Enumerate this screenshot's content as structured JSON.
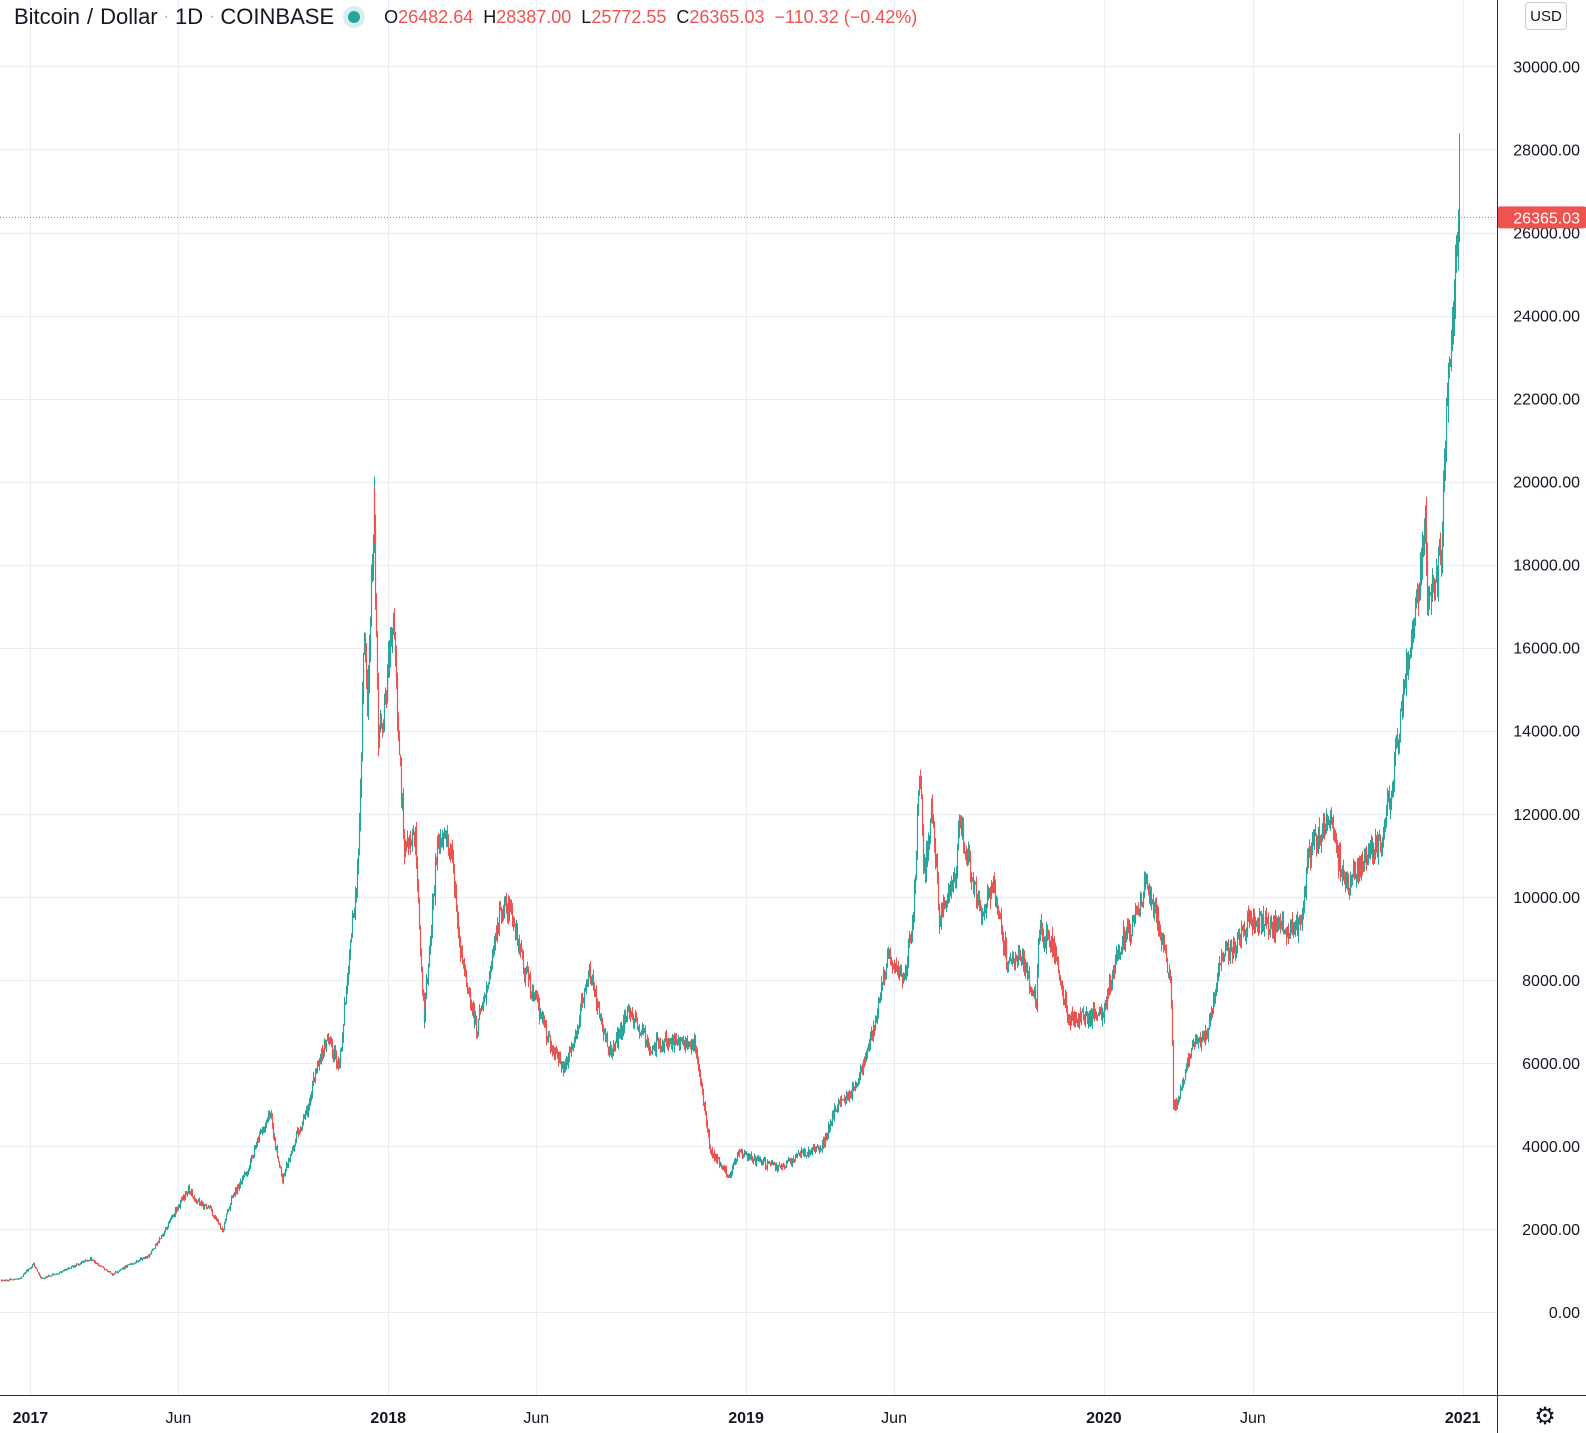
{
  "header": {
    "symbol": "Bitcoin",
    "sep1": "/",
    "quote": "Dollar",
    "sep2": "·",
    "interval": "1D",
    "sep3": "·",
    "exchange": "COINBASE",
    "o_label": "O",
    "o_value": "26482.64",
    "h_label": "H",
    "h_value": "28387.00",
    "l_label": "L",
    "l_value": "25772.55",
    "c_label": "C",
    "c_value": "26365.03",
    "change": "−110.32 (−0.42%)"
  },
  "currency_button": "USD",
  "settings_icon": "gear-icon",
  "colors": {
    "up": "#26a69a",
    "down": "#ef5350",
    "grid": "#e8eef3",
    "last_price": "#ef5350"
  },
  "chart_data": {
    "type": "candlestick",
    "x_ticks": [
      {
        "label": "2017",
        "date": "2017-01-01"
      },
      {
        "label": "Jun",
        "date": "2017-06-01"
      },
      {
        "label": "2018",
        "date": "2018-01-01"
      },
      {
        "label": "Jun",
        "date": "2018-06-01"
      },
      {
        "label": "2019",
        "date": "2019-01-01"
      },
      {
        "label": "Jun",
        "date": "2019-06-01"
      },
      {
        "label": "2020",
        "date": "2020-01-01"
      },
      {
        "label": "Jun",
        "date": "2020-06-01"
      },
      {
        "label": "2021",
        "date": "2021-01-01"
      }
    ],
    "y_ticks": [
      "30000.00",
      "28000.00",
      "26000.00",
      "24000.00",
      "22000.00",
      "20000.00",
      "18000.00",
      "16000.00",
      "14000.00",
      "12000.00",
      "10000.00",
      "8000.00",
      "6000.00",
      "4000.00",
      "2000.00",
      "0.00"
    ],
    "ylim": [
      -2000,
      31600
    ],
    "xlim": [
      "2016-12-01",
      "2021-02-05"
    ],
    "grid": true,
    "last_price": "26365.03",
    "close_path": [
      [
        "2016-12-01",
        750
      ],
      [
        "2016-12-20",
        800
      ],
      [
        "2017-01-04",
        1150
      ],
      [
        "2017-01-12",
        800
      ],
      [
        "2017-02-01",
        970
      ],
      [
        "2017-03-03",
        1280
      ],
      [
        "2017-03-25",
        900
      ],
      [
        "2017-04-15",
        1180
      ],
      [
        "2017-05-01",
        1350
      ],
      [
        "2017-05-15",
        1850
      ],
      [
        "2017-05-25",
        2300
      ],
      [
        "2017-06-11",
        2950
      ],
      [
        "2017-06-20",
        2650
      ],
      [
        "2017-07-02",
        2500
      ],
      [
        "2017-07-15",
        1950
      ],
      [
        "2017-07-25",
        2700
      ],
      [
        "2017-08-10",
        3400
      ],
      [
        "2017-08-20",
        4100
      ],
      [
        "2017-09-01",
        4800
      ],
      [
        "2017-09-15",
        3200
      ],
      [
        "2017-09-30",
        4300
      ],
      [
        "2017-10-10",
        4800
      ],
      [
        "2017-10-20",
        6000
      ],
      [
        "2017-11-01",
        6600
      ],
      [
        "2017-11-12",
        5900
      ],
      [
        "2017-11-20",
        8100
      ],
      [
        "2017-12-01",
        10800
      ],
      [
        "2017-12-07",
        16500
      ],
      [
        "2017-12-10",
        14500
      ],
      [
        "2017-12-17",
        19650
      ],
      [
        "2017-12-22",
        13900
      ],
      [
        "2017-12-28",
        14500
      ],
      [
        "2018-01-06",
        16800
      ],
      [
        "2018-01-12",
        13500
      ],
      [
        "2018-01-17",
        11200
      ],
      [
        "2018-01-28",
        11500
      ],
      [
        "2018-02-06",
        6900
      ],
      [
        "2018-02-20",
        11200
      ],
      [
        "2018-03-04",
        11400
      ],
      [
        "2018-03-17",
        8300
      ],
      [
        "2018-04-01",
        6800
      ],
      [
        "2018-04-12",
        7900
      ],
      [
        "2018-04-24",
        9600
      ],
      [
        "2018-05-05",
        9700
      ],
      [
        "2018-05-20",
        8200
      ],
      [
        "2018-06-01",
        7500
      ],
      [
        "2018-06-15",
        6400
      ],
      [
        "2018-06-29",
        5900
      ],
      [
        "2018-07-10",
        6500
      ],
      [
        "2018-07-24",
        8300
      ],
      [
        "2018-08-14",
        6200
      ],
      [
        "2018-09-04",
        7300
      ],
      [
        "2018-09-25",
        6400
      ],
      [
        "2018-10-15",
        6500
      ],
      [
        "2018-11-10",
        6400
      ],
      [
        "2018-11-15",
        5600
      ],
      [
        "2018-11-25",
        3900
      ],
      [
        "2018-12-15",
        3250
      ],
      [
        "2018-12-25",
        3900
      ],
      [
        "2019-01-10",
        3650
      ],
      [
        "2019-02-05",
        3450
      ],
      [
        "2019-02-24",
        3800
      ],
      [
        "2019-03-20",
        4000
      ],
      [
        "2019-04-02",
        4900
      ],
      [
        "2019-04-22",
        5400
      ],
      [
        "2019-05-12",
        6900
      ],
      [
        "2019-05-26",
        8700
      ],
      [
        "2019-06-10",
        8000
      ],
      [
        "2019-06-20",
        9500
      ],
      [
        "2019-06-26",
        13000
      ],
      [
        "2019-07-02",
        10600
      ],
      [
        "2019-07-10",
        12100
      ],
      [
        "2019-07-17",
        9500
      ],
      [
        "2019-08-02",
        10400
      ],
      [
        "2019-08-06",
        11800
      ],
      [
        "2019-08-28",
        9600
      ],
      [
        "2019-09-10",
        10200
      ],
      [
        "2019-09-24",
        8500
      ],
      [
        "2019-10-10",
        8500
      ],
      [
        "2019-10-24",
        7450
      ],
      [
        "2019-10-26",
        9200
      ],
      [
        "2019-11-10",
        8800
      ],
      [
        "2019-11-25",
        7100
      ],
      [
        "2019-12-15",
        7100
      ],
      [
        "2019-12-31",
        7200
      ],
      [
        "2020-01-15",
        8800
      ],
      [
        "2020-02-01",
        9400
      ],
      [
        "2020-02-13",
        10300
      ],
      [
        "2020-02-25",
        9300
      ],
      [
        "2020-03-08",
        8000
      ],
      [
        "2020-03-12",
        4900
      ],
      [
        "2020-03-16",
        5000
      ],
      [
        "2020-03-31",
        6450
      ],
      [
        "2020-04-15",
        6700
      ],
      [
        "2020-04-30",
        8700
      ],
      [
        "2020-05-10",
        8700
      ],
      [
        "2020-05-30",
        9500
      ],
      [
        "2020-06-20",
        9300
      ],
      [
        "2020-07-20",
        9200
      ],
      [
        "2020-07-27",
        11000
      ],
      [
        "2020-08-17",
        12000
      ],
      [
        "2020-09-03",
        10200
      ],
      [
        "2020-09-20",
        10900
      ],
      [
        "2020-10-10",
        11300
      ],
      [
        "2020-10-21",
        12800
      ],
      [
        "2020-11-05",
        15600
      ],
      [
        "2020-11-24",
        19000
      ],
      [
        "2020-11-26",
        17000
      ],
      [
        "2020-12-10",
        18300
      ],
      [
        "2020-12-17",
        22800
      ],
      [
        "2020-12-22",
        23800
      ],
      [
        "2020-12-27",
        26480
      ],
      [
        "2020-12-28",
        26365
      ]
    ]
  }
}
